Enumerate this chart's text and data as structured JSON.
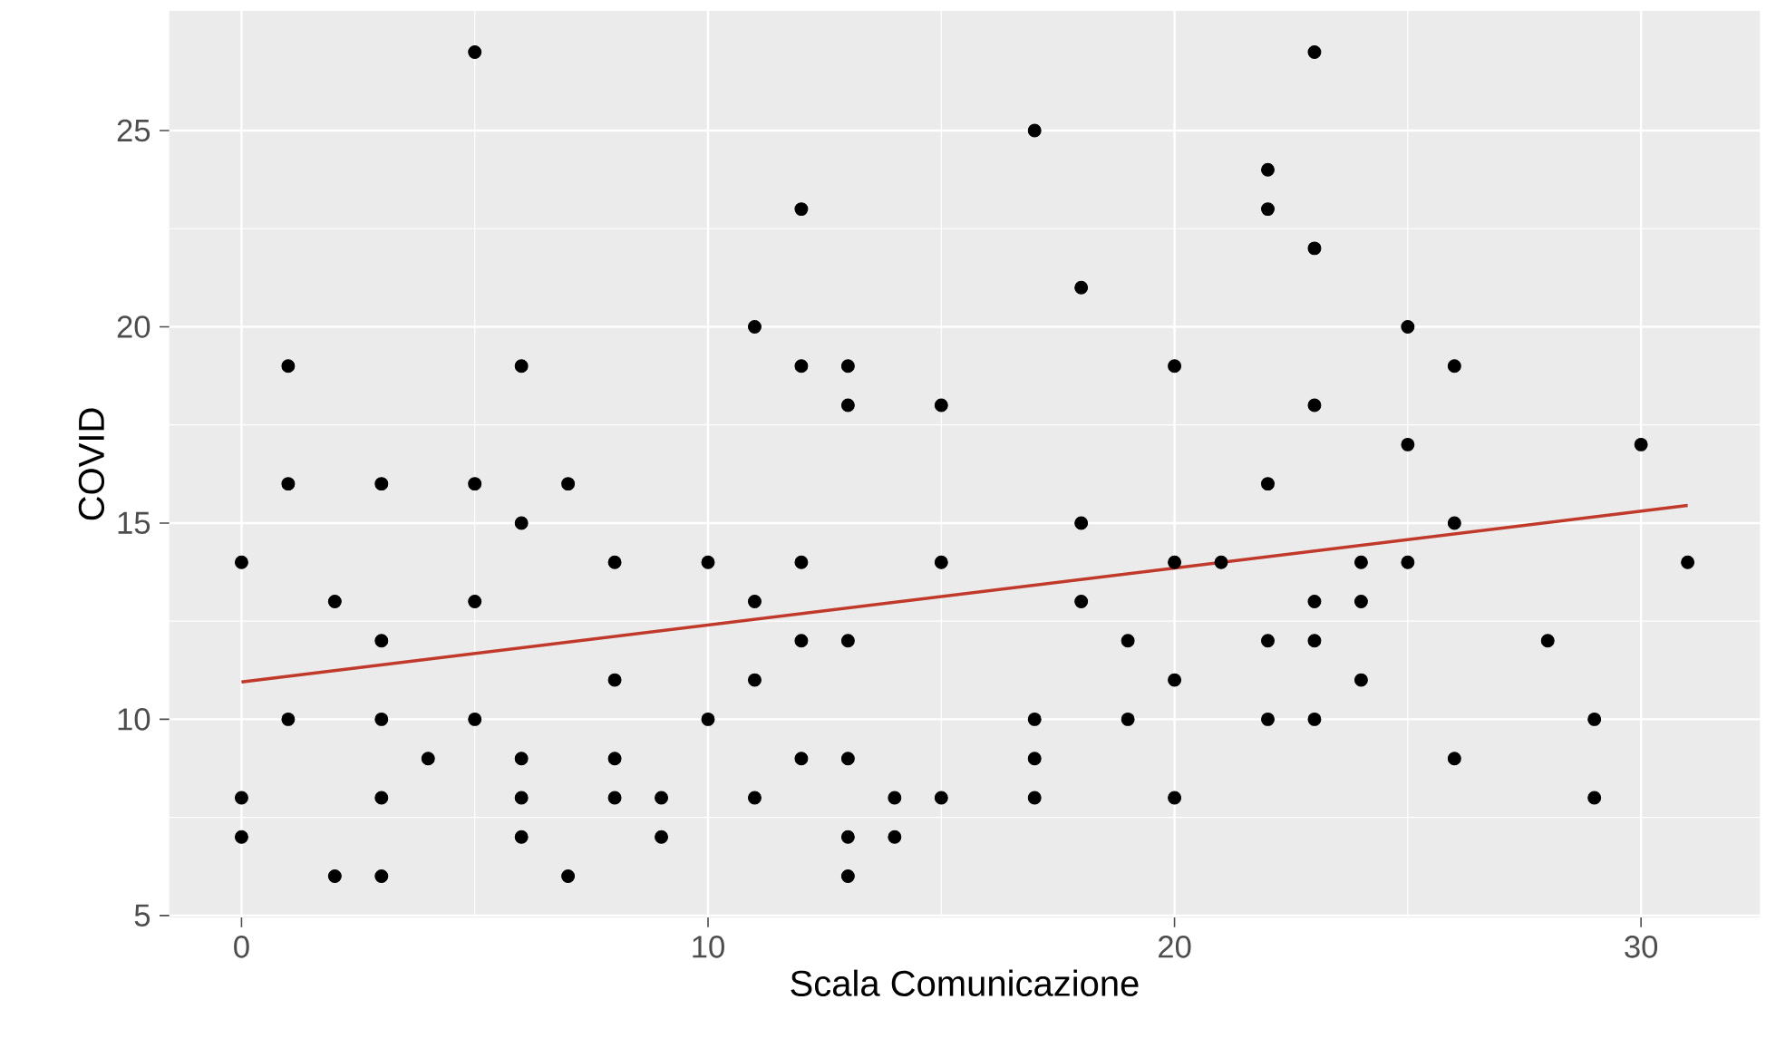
{
  "chart_data": {
    "type": "scatter",
    "xlabel": "Scala Comunicazione",
    "ylabel": "COVID",
    "xlim": [
      -1.55,
      32.55
    ],
    "ylim": [
      4.95,
      28.05
    ],
    "xticks": [
      0,
      10,
      20,
      30
    ],
    "yticks": [
      5,
      10,
      15,
      20,
      25
    ],
    "grid": true,
    "series": [
      {
        "marker": "circle",
        "color": "#000000",
        "x": [
          0,
          0,
          0,
          1,
          1,
          1,
          2,
          2,
          3,
          3,
          3,
          3,
          3,
          4,
          5,
          5,
          5,
          5,
          6,
          6,
          6,
          6,
          6,
          7,
          7,
          8,
          8,
          8,
          8,
          9,
          9,
          10,
          10,
          11,
          11,
          11,
          11,
          12,
          12,
          12,
          12,
          12,
          13,
          13,
          13,
          13,
          13,
          13,
          14,
          14,
          15,
          15,
          15,
          17,
          17,
          17,
          17,
          18,
          18,
          18,
          19,
          19,
          20,
          20,
          20,
          20,
          21,
          22,
          22,
          22,
          22,
          22,
          23,
          23,
          23,
          23,
          23,
          23,
          24,
          24,
          24,
          25,
          25,
          25,
          26,
          26,
          26,
          28,
          29,
          29,
          30,
          31
        ],
        "values": [
          14,
          8,
          7,
          19,
          16,
          10,
          13,
          6,
          16,
          12,
          10,
          8,
          6,
          9,
          27,
          16,
          13,
          10,
          19,
          15,
          9,
          8,
          7,
          16,
          6,
          14,
          11,
          9,
          8,
          8,
          7,
          14,
          10,
          20,
          13,
          11,
          8,
          23,
          19,
          14,
          12,
          9,
          19,
          18,
          12,
          9,
          7,
          6,
          8,
          7,
          18,
          14,
          8,
          25,
          10,
          9,
          8,
          21,
          15,
          13,
          12,
          10,
          19,
          14,
          11,
          8,
          14,
          24,
          23,
          16,
          12,
          10,
          27,
          22,
          18,
          13,
          12,
          10,
          14,
          13,
          11,
          20,
          17,
          14,
          19,
          15,
          9,
          12,
          10,
          8,
          17,
          14
        ]
      },
      {
        "type": "line",
        "marker": "none",
        "color": "#c0392b",
        "x": [
          0,
          31
        ],
        "values": [
          10.95,
          15.45
        ]
      }
    ]
  }
}
